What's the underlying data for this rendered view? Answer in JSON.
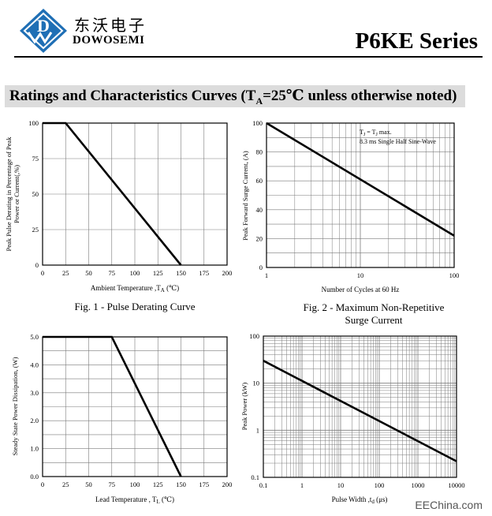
{
  "header": {
    "logo_letter": "D",
    "company_cn": "东沃电子",
    "company_en": "DOWOSEMI",
    "series_title": "P6KE Series",
    "colors": {
      "logo_blue": "#1f6fb5",
      "rule": "#000000",
      "section_band": "#dcdcdc"
    }
  },
  "section": {
    "title_main": "Ratings and Characteristics Curves (T",
    "title_sub": "A",
    "title_tail": "=25℃ unless otherwise noted)"
  },
  "captions": {
    "fig1": "Fig. 1 - Pulse Derating Curve",
    "fig2_line1": "Fig. 2 - Maximum Non-Repetitive",
    "fig2_line2": "Surge Current"
  },
  "watermark": "EEChina.com",
  "chart_data": [
    {
      "type": "line",
      "ylabel_line1": "Peak Pulse Derating in Percentage of  Peak",
      "ylabel_line2": "Power or Current(,%)",
      "xlabel_main": "Ambient Temperature ,T",
      "xlabel_sub": "A",
      "xlabel_tail": " (℃)",
      "xlim": [
        0,
        200
      ],
      "ylim": [
        0,
        100
      ],
      "xticks": [
        0,
        25,
        50,
        75,
        100,
        125,
        150,
        175,
        200
      ],
      "yticks": [
        0,
        25,
        50,
        75,
        100
      ],
      "ytick_labels": [
        "0",
        "25",
        "50",
        "75",
        "100"
      ],
      "grid": true,
      "series": [
        {
          "x": [
            0,
            25,
            150
          ],
          "y": [
            100,
            100,
            0
          ]
        }
      ]
    },
    {
      "type": "line",
      "xscale": "log",
      "ylabel": "Peak Forward Surge Current, (A)",
      "xlabel": "Number of Cycles at 60 Hz",
      "xlim": [
        1,
        100
      ],
      "ylim": [
        0,
        100
      ],
      "xtick_labels": [
        "1",
        "10",
        "100"
      ],
      "yticks": [
        0,
        20,
        40,
        60,
        80,
        100
      ],
      "annotation_line1_main": "T",
      "annotation_line1_sub1": "J",
      "annotation_line1_mid": " = T",
      "annotation_line1_sub2": "J",
      "annotation_line1_tail": " max.",
      "annotation_line2": "8.3 ms Single Half Sine-Wave",
      "grid": true,
      "series": [
        {
          "x": [
            1,
            100
          ],
          "y": [
            100,
            22
          ]
        }
      ]
    },
    {
      "type": "line",
      "ylabel": "Steady State Power Dissipation, (W)",
      "xlabel_main": "Lead Temperature , T",
      "xlabel_sub": "L",
      "xlabel_tail": " (℃)",
      "xlim": [
        0,
        200
      ],
      "ylim": [
        0,
        5
      ],
      "xticks": [
        0,
        25,
        50,
        75,
        100,
        125,
        150,
        175,
        200
      ],
      "yticks": [
        0,
        1,
        2,
        3,
        4,
        5
      ],
      "ytick_labels": [
        "0.0",
        "1.0",
        "2.0",
        "3.0",
        "4.0",
        "5.0"
      ],
      "grid": true,
      "series": [
        {
          "x": [
            0,
            75,
            150
          ],
          "y": [
            5,
            5,
            0
          ]
        }
      ]
    },
    {
      "type": "line",
      "xscale": "log",
      "yscale": "log",
      "ylabel": "Peak Power  (kW)",
      "xlabel_main": "Pulse Width ,t",
      "xlabel_sub": "d",
      "xlabel_tail": " (μs)",
      "xlim": [
        0.1,
        10000
      ],
      "ylim": [
        0.1,
        100
      ],
      "xtick_labels": [
        "0.1",
        "1",
        "10",
        "100",
        "1000",
        "10000"
      ],
      "ytick_labels": [
        "0.1",
        "1",
        "10",
        "100"
      ],
      "grid": true,
      "series": [
        {
          "x": [
            0.1,
            10000
          ],
          "y": [
            30,
            0.22
          ]
        }
      ]
    }
  ]
}
